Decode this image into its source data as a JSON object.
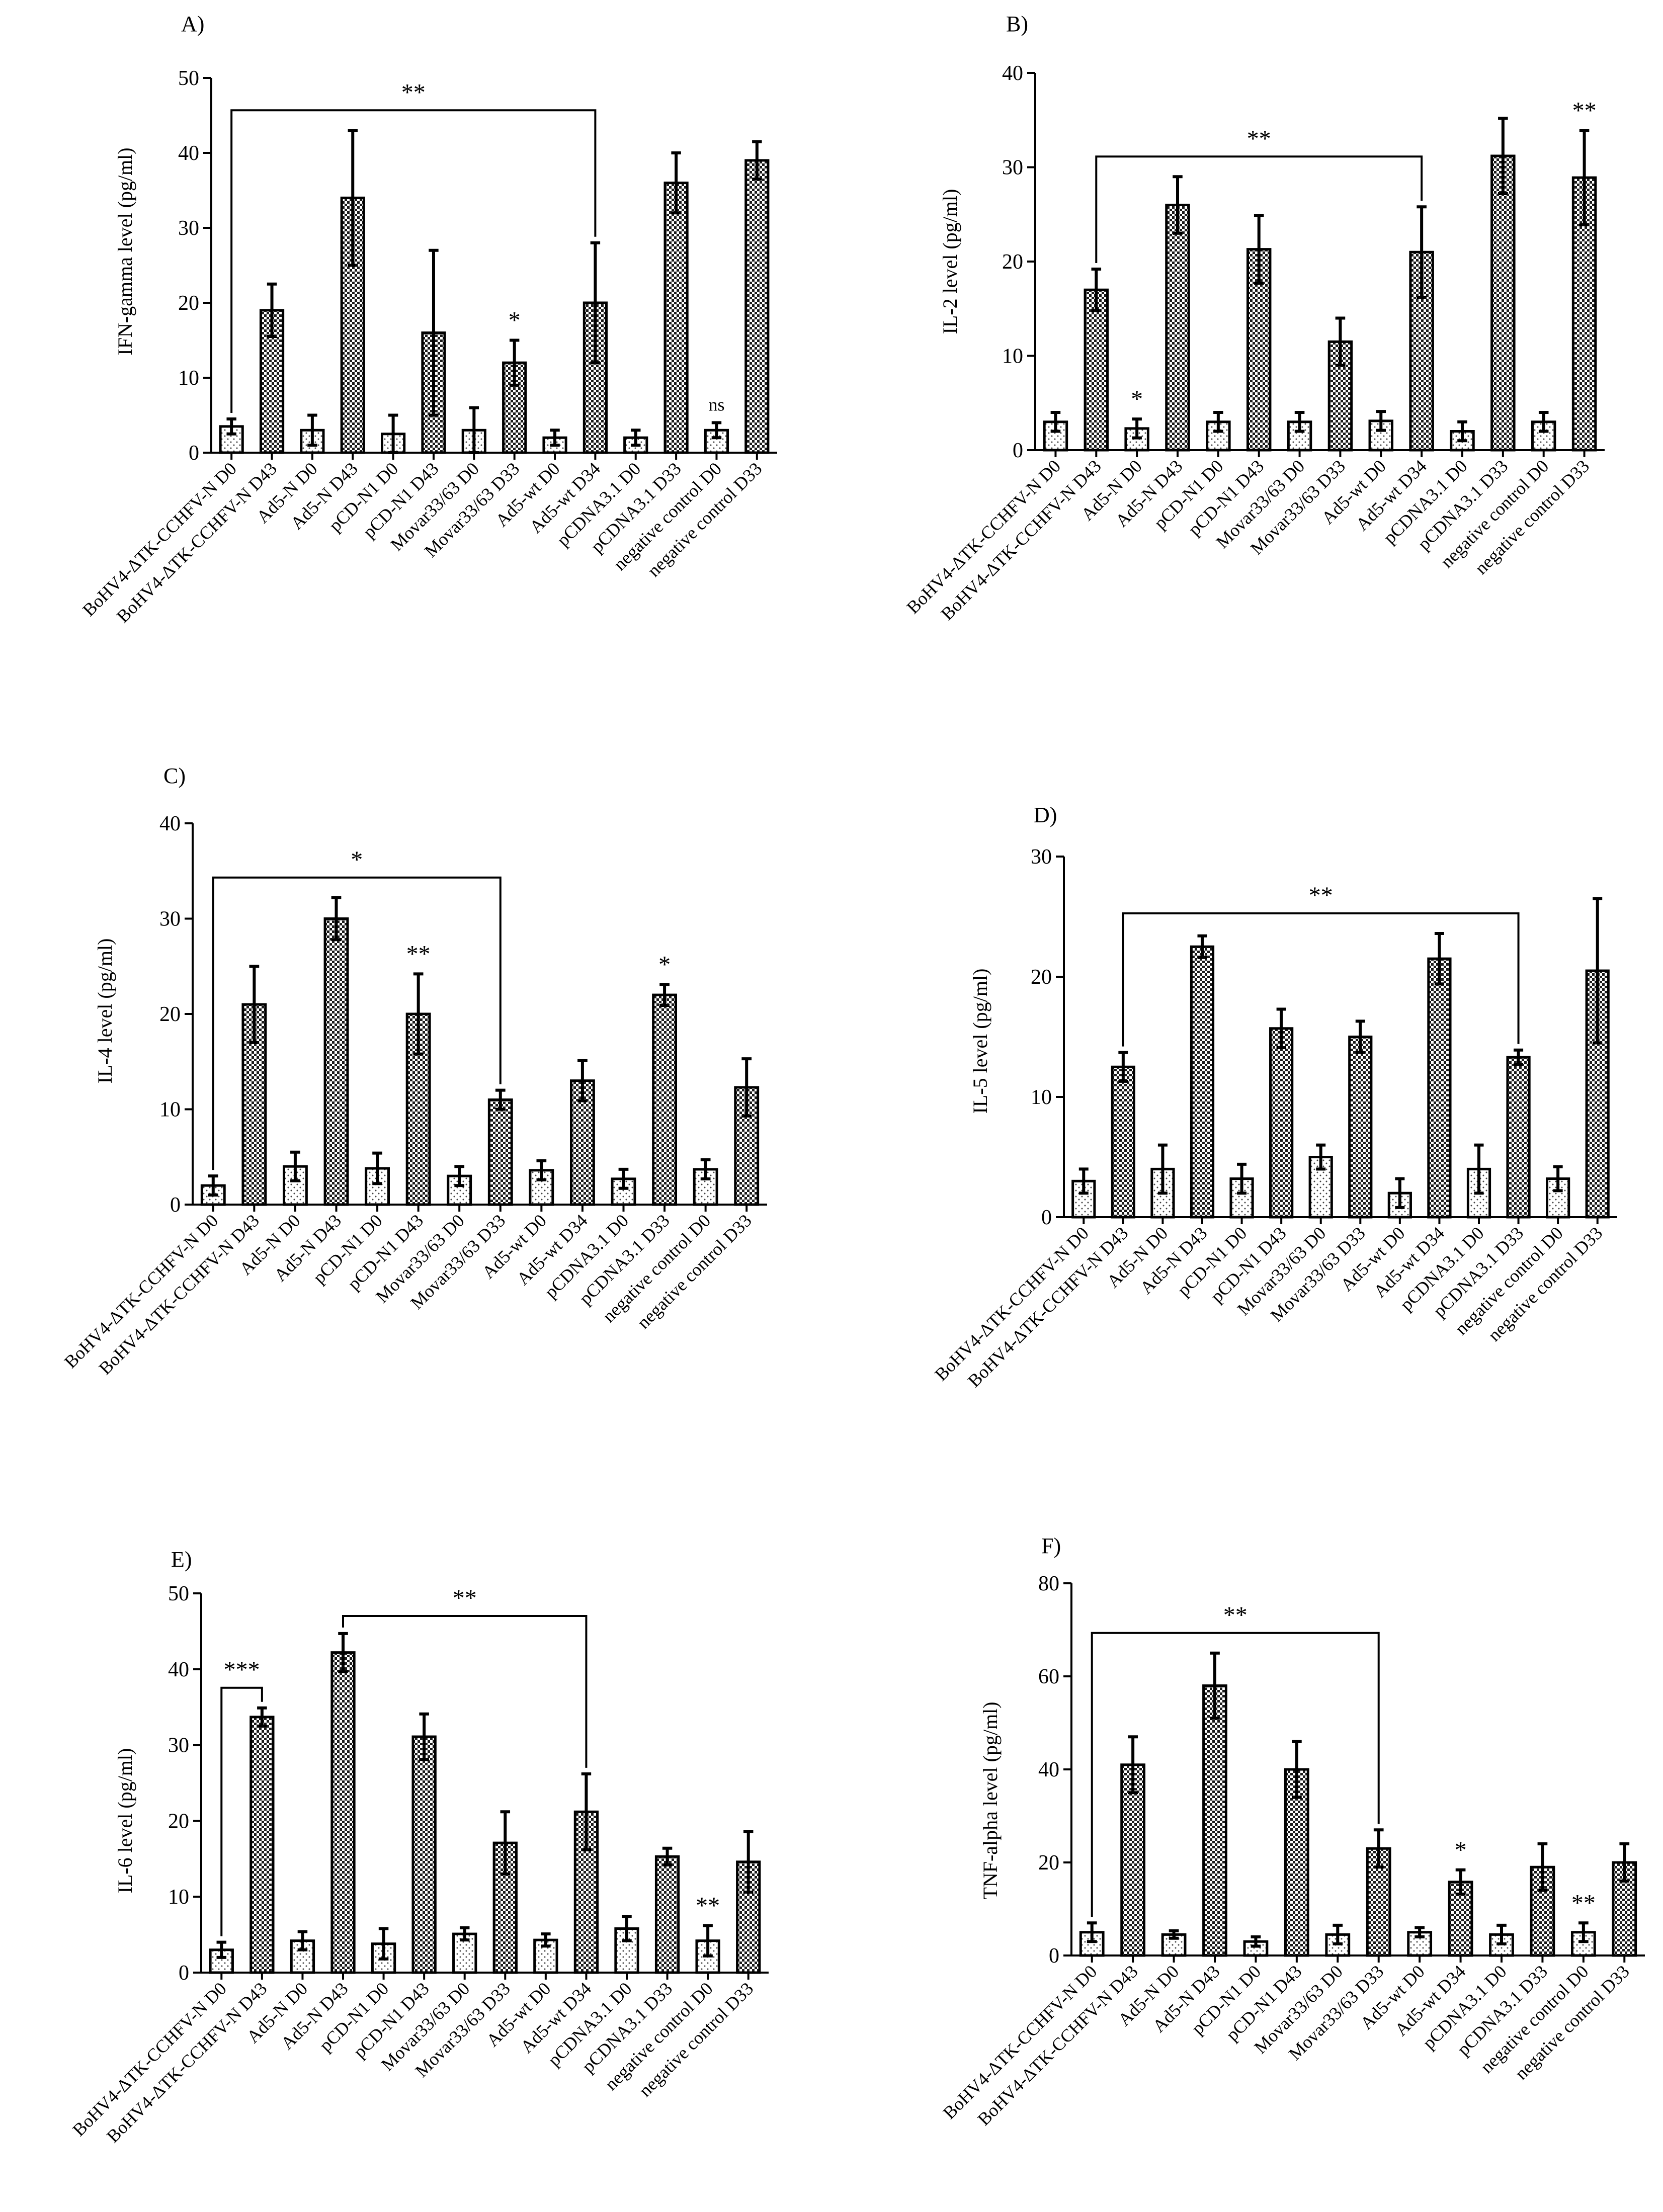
{
  "figure": {
    "colors": {
      "ink": "#000000",
      "d0_fill": "#ffffff",
      "d_fill": "#2a2a2a"
    },
    "categories": [
      "BoHV4-ΔTK-CCHFV-N D0",
      "BoHV4-ΔTK-CCHFV-N D43",
      "Ad5-N D0",
      "Ad5-N D43",
      "pCD-N1 D0",
      "pCD-N1 D43",
      "Movar33/63 D0",
      "Movar33/63 D33",
      "Ad5-wt D0",
      "Ad5-wt D34",
      "pCDNA3.1 D0",
      "pCDNA3.1 D33",
      "negative control D0",
      "negative control D33"
    ]
  },
  "chart_data": [
    {
      "panel": "A)",
      "type": "bar",
      "ylabel": "IFN-gamma level (pg/ml)",
      "ylim": [
        0,
        50
      ],
      "yticks": [
        0,
        10,
        20,
        30,
        40,
        50
      ],
      "values": [
        3.5,
        19,
        3,
        34,
        2.5,
        16,
        3,
        12,
        2,
        20,
        2,
        36,
        3,
        39
      ],
      "errors": [
        1,
        3.5,
        2,
        9,
        2.5,
        11,
        3,
        3,
        1,
        8,
        1,
        4,
        1,
        2.5
      ],
      "bracket": {
        "from": 0,
        "to": 9,
        "label": "**"
      },
      "annotations": [
        {
          "bar": 7,
          "label": "*"
        },
        {
          "bar": 12,
          "label": "ns"
        }
      ]
    },
    {
      "panel": "B)",
      "type": "bar",
      "ylabel": "IL-2 level (pg/ml)",
      "ylim": [
        0,
        40
      ],
      "yticks": [
        0,
        10,
        20,
        30,
        40
      ],
      "values": [
        3,
        17,
        2.3,
        26,
        3,
        21.3,
        3,
        11.5,
        3.1,
        21,
        2,
        31.2,
        3,
        28.9
      ],
      "errors": [
        1,
        2.2,
        1,
        3,
        1,
        3.6,
        1,
        2.5,
        1,
        4.8,
        1,
        4,
        1,
        5
      ],
      "bracket": {
        "from": 1,
        "to": 9,
        "label": "**"
      },
      "annotations": [
        {
          "bar": 2,
          "label": "*"
        },
        {
          "bar": 13,
          "label": "**"
        }
      ]
    },
    {
      "panel": "C)",
      "type": "bar",
      "ylabel": "IL-4 level (pg/ml)",
      "ylim": [
        0,
        40
      ],
      "yticks": [
        0,
        10,
        20,
        30,
        40
      ],
      "values": [
        2,
        21,
        4,
        30,
        3.8,
        20,
        3,
        11,
        3.6,
        13,
        2.7,
        22,
        3.7,
        12.3
      ],
      "errors": [
        1,
        4,
        1.5,
        2.2,
        1.6,
        4.2,
        1,
        1,
        1,
        2.1,
        1,
        1.1,
        1,
        3
      ],
      "bracket": {
        "from": 0,
        "to": 7,
        "label": "*"
      },
      "annotations": [
        {
          "bar": 5,
          "label": "**"
        },
        {
          "bar": 11,
          "label": "*"
        }
      ]
    },
    {
      "panel": "D)",
      "type": "bar",
      "ylabel": "IL-5 level (pg/ml)",
      "ylim": [
        0,
        30
      ],
      "yticks": [
        0,
        10,
        20,
        30
      ],
      "values": [
        3,
        12.5,
        4,
        22.5,
        3.2,
        15.7,
        5,
        15,
        2,
        21.5,
        4,
        13.3,
        3.2,
        20.5
      ],
      "errors": [
        1,
        1.2,
        2,
        0.9,
        1.2,
        1.6,
        1,
        1.3,
        1.2,
        2.1,
        2,
        0.6,
        1,
        6
      ],
      "bracket": {
        "from": 1,
        "to": 11,
        "label": "**"
      },
      "annotations": []
    },
    {
      "panel": "E)",
      "type": "bar",
      "ylabel": "IL-6 level (pg/ml)",
      "ylim": [
        0,
        50
      ],
      "yticks": [
        0,
        10,
        20,
        30,
        40,
        50
      ],
      "values": [
        3,
        33.7,
        4.2,
        42.2,
        3.8,
        31.1,
        5.1,
        17.1,
        4.3,
        21.2,
        5.8,
        15.3,
        4.2,
        14.6
      ],
      "errors": [
        1,
        1.2,
        1.2,
        2.5,
        2,
        3,
        0.8,
        4.1,
        0.8,
        5,
        1.6,
        1.1,
        2,
        4
      ],
      "bracket": {
        "from": 3,
        "to": 9,
        "label": "**"
      },
      "bracket2": {
        "from": 0,
        "to": 1,
        "label": "***"
      },
      "annotations": [
        {
          "bar": 12,
          "label": "**"
        }
      ]
    },
    {
      "panel": "F)",
      "type": "bar",
      "ylabel": "TNF-alpha level (pg/ml)",
      "ylim": [
        0,
        80
      ],
      "yticks": [
        0,
        20,
        40,
        60,
        80
      ],
      "values": [
        5,
        41,
        4.5,
        58,
        3,
        40,
        4.5,
        23,
        5,
        15.8,
        4.5,
        19,
        5,
        20
      ],
      "errors": [
        2,
        6,
        0.8,
        7,
        1,
        6,
        2,
        4,
        1,
        2.6,
        2,
        5,
        2,
        4
      ],
      "bracket": {
        "from": 0,
        "to": 7,
        "label": "**"
      },
      "annotations": [
        {
          "bar": 9,
          "label": "*"
        },
        {
          "bar": 12,
          "label": "**"
        }
      ]
    }
  ]
}
